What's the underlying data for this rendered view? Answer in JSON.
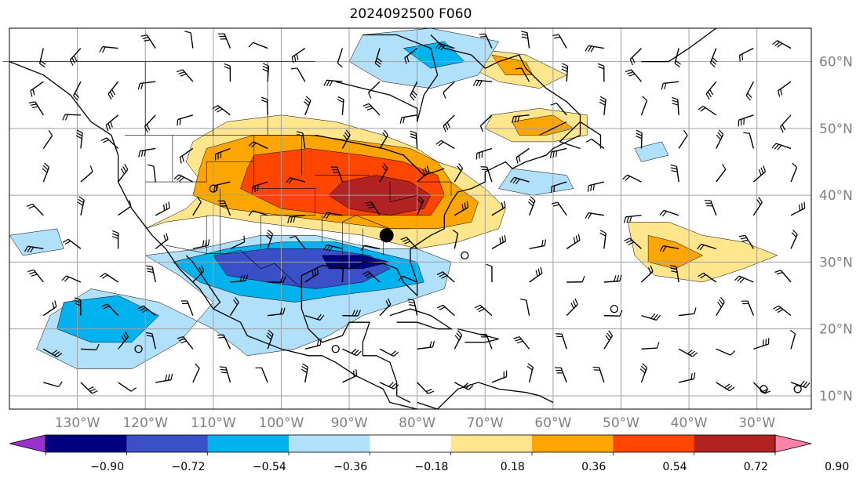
{
  "title": "2024092500 F060",
  "map": {
    "projection": "equirectangular",
    "lon_range": [
      -140,
      -22
    ],
    "lat_range": [
      8,
      65
    ],
    "lat_ticks": [
      {
        "value": 60,
        "label": "60°N"
      },
      {
        "value": 50,
        "label": "50°N"
      },
      {
        "value": 40,
        "label": "40°N"
      },
      {
        "value": 30,
        "label": "30°N"
      },
      {
        "value": 20,
        "label": "20°N"
      },
      {
        "value": 10,
        "label": "10°N"
      }
    ],
    "lon_ticks": [
      {
        "value": -130,
        "label": "130°W"
      },
      {
        "value": -120,
        "label": "120°W"
      },
      {
        "value": -110,
        "label": "110°W"
      },
      {
        "value": -100,
        "label": "100°W"
      },
      {
        "value": -90,
        "label": "90°W"
      },
      {
        "value": -80,
        "label": "80°W"
      },
      {
        "value": -70,
        "label": "70°W"
      },
      {
        "value": -60,
        "label": "60°W"
      },
      {
        "value": -50,
        "label": "50°W"
      },
      {
        "value": -40,
        "label": "40°W"
      },
      {
        "value": -30,
        "label": "30°W"
      }
    ],
    "gridlines": true,
    "marker": {
      "lon": -84.5,
      "lat": 34,
      "symbol": "filled-circle"
    }
  },
  "colorbar": {
    "position": "bottom",
    "extend": "both",
    "levels": [
      -0.9,
      -0.72,
      -0.54,
      -0.36,
      -0.18,
      0.18,
      0.36,
      0.54,
      0.72,
      0.9
    ],
    "labels": [
      "−0.90",
      "−0.72",
      "−0.54",
      "−0.36",
      "−0.18",
      "0.18",
      "0.36",
      "0.54",
      "0.72",
      "0.90"
    ],
    "colors": [
      "#9932cc",
      "#000080",
      "#3b4fc8",
      "#00b2ee",
      "#b0e0fa",
      "#ffffff",
      "#ffe68c",
      "#ffa500",
      "#ff4500",
      "#b22222",
      "#ff82ab"
    ]
  }
}
